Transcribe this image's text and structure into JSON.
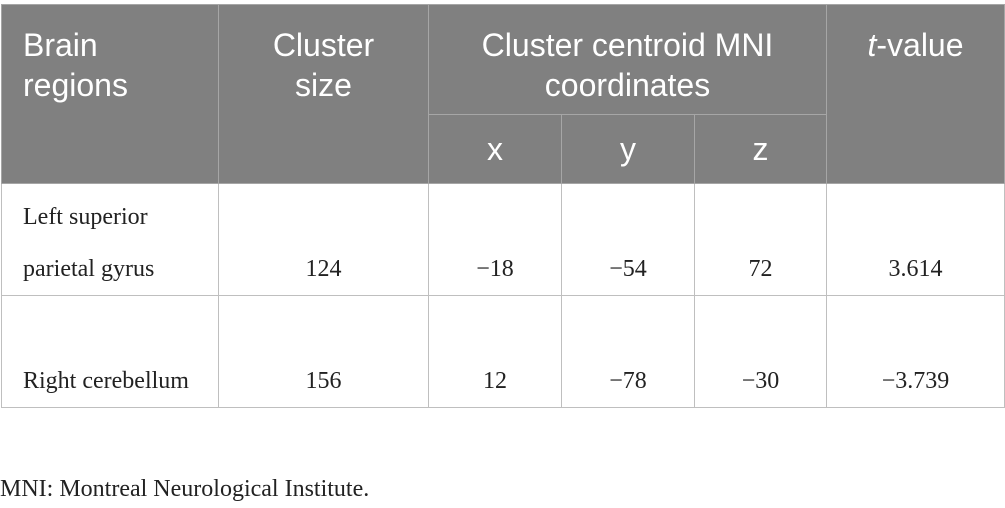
{
  "table": {
    "header": {
      "brain_regions": "Brain regions",
      "cluster_size": "Cluster size",
      "centroid": "Cluster centroid MNI coordinates",
      "x": "x",
      "y": "y",
      "z": "z",
      "t_value": {
        "italic": "t",
        "text": "-value"
      }
    },
    "rows": [
      [
        "Left superior parietal gyrus",
        "124",
        "−18",
        "−54",
        "72",
        "3.614"
      ],
      [
        "Right cerebellum",
        "156",
        "12",
        "−78",
        "−30",
        "−3.739"
      ]
    ]
  },
  "footnote": "MNI: Montreal Neurological Institute."
}
